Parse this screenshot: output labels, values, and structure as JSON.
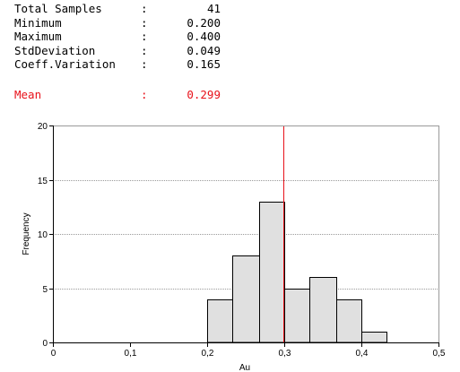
{
  "stats": [
    {
      "label": "Total Samples",
      "colon": ":",
      "value": "41"
    },
    {
      "label": "Minimum",
      "colon": ":",
      "value": "0.200"
    },
    {
      "label": "Maximum",
      "colon": ":",
      "value": "0.400"
    },
    {
      "label": "StdDeviation",
      "colon": ":",
      "value": "0.049"
    },
    {
      "label": "Coeff.Variation",
      "colon": ":",
      "value": "0.165"
    }
  ],
  "mean": {
    "label": "Mean",
    "colon": ":",
    "value": "0.299",
    "color": "#e8111a"
  },
  "chart_data": {
    "type": "bar",
    "xlabel": "Au",
    "ylabel": "Frequency",
    "xlim": [
      0,
      0.5
    ],
    "ylim": [
      0,
      20
    ],
    "xticks": [
      "0",
      "0,1",
      "0,2",
      "0,3",
      "0,4",
      "0,5"
    ],
    "xtick_values": [
      0,
      0.1,
      0.2,
      0.3,
      0.4,
      0.5
    ],
    "yticks": [
      "0",
      "5",
      "10",
      "15",
      "20"
    ],
    "ytick_values": [
      0,
      5,
      10,
      15,
      20
    ],
    "bins": [
      {
        "start": 0.2,
        "end": 0.233,
        "value": 4
      },
      {
        "start": 0.233,
        "end": 0.267,
        "value": 8
      },
      {
        "start": 0.267,
        "end": 0.3,
        "value": 13
      },
      {
        "start": 0.3,
        "end": 0.333,
        "value": 5
      },
      {
        "start": 0.333,
        "end": 0.367,
        "value": 6
      },
      {
        "start": 0.367,
        "end": 0.4,
        "value": 4
      },
      {
        "start": 0.4,
        "end": 0.433,
        "value": 1
      }
    ],
    "mean_line": 0.299,
    "grid": true,
    "bar_fill": "#e0e0e0",
    "mean_line_color": "#e8111a"
  }
}
